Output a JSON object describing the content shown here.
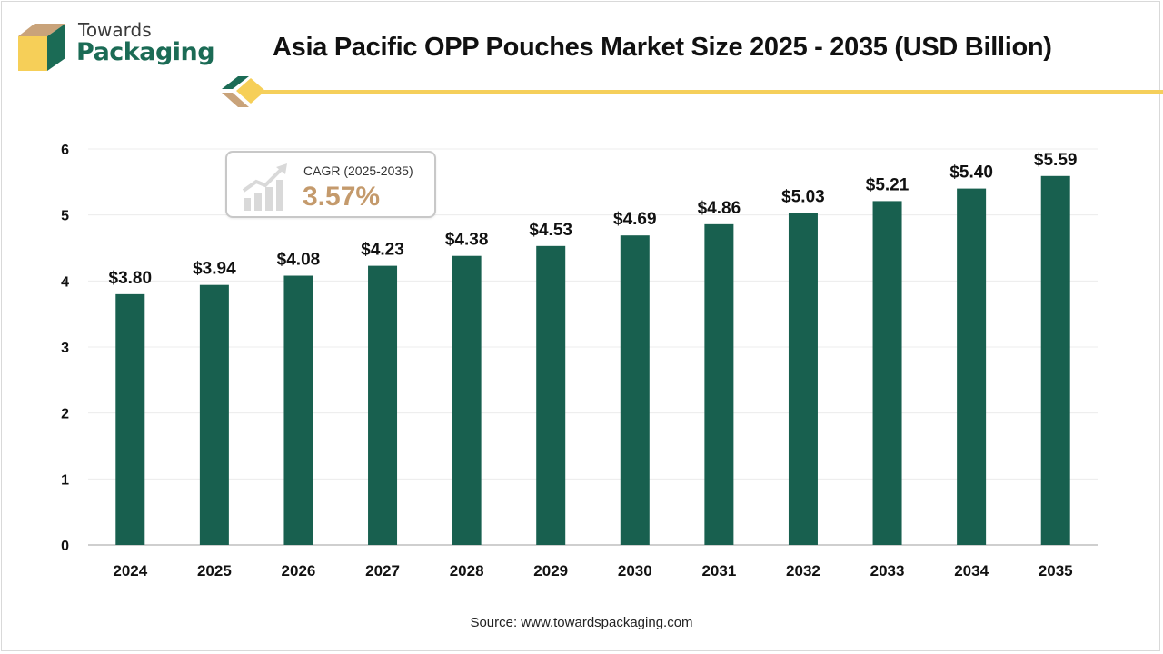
{
  "brand": {
    "line1": "Towards",
    "line2": "Packaging"
  },
  "title": "Asia Pacific OPP Pouches Market Size 2025 - 2035 (USD Billion)",
  "cagr": {
    "label": "CAGR (2025-2035)",
    "value": "3.57%",
    "icon": "growth-chart-icon"
  },
  "source": "Source: www.towardspackaging.com",
  "colors": {
    "bar": "#18604f",
    "brand_green": "#1b6b55",
    "accent_yellow": "#f5cf5b",
    "cagr_value": "#c49a6c"
  },
  "chart_data": {
    "type": "bar",
    "categories": [
      "2024",
      "2025",
      "2026",
      "2027",
      "2028",
      "2029",
      "2030",
      "2031",
      "2032",
      "2033",
      "2034",
      "2035"
    ],
    "values": [
      3.8,
      3.94,
      4.08,
      4.23,
      4.38,
      4.53,
      4.69,
      4.86,
      5.03,
      5.21,
      5.4,
      5.59
    ],
    "value_labels": [
      "$3.80",
      "$3.94",
      "$4.08",
      "$4.23",
      "$4.38",
      "$4.53",
      "$4.69",
      "$4.86",
      "$5.03",
      "$5.21",
      "$5.40",
      "$5.59"
    ],
    "yticks": [
      0,
      1,
      2,
      3,
      4,
      5,
      6
    ],
    "ylim": [
      0,
      6
    ],
    "grid": true,
    "legend": "none"
  }
}
